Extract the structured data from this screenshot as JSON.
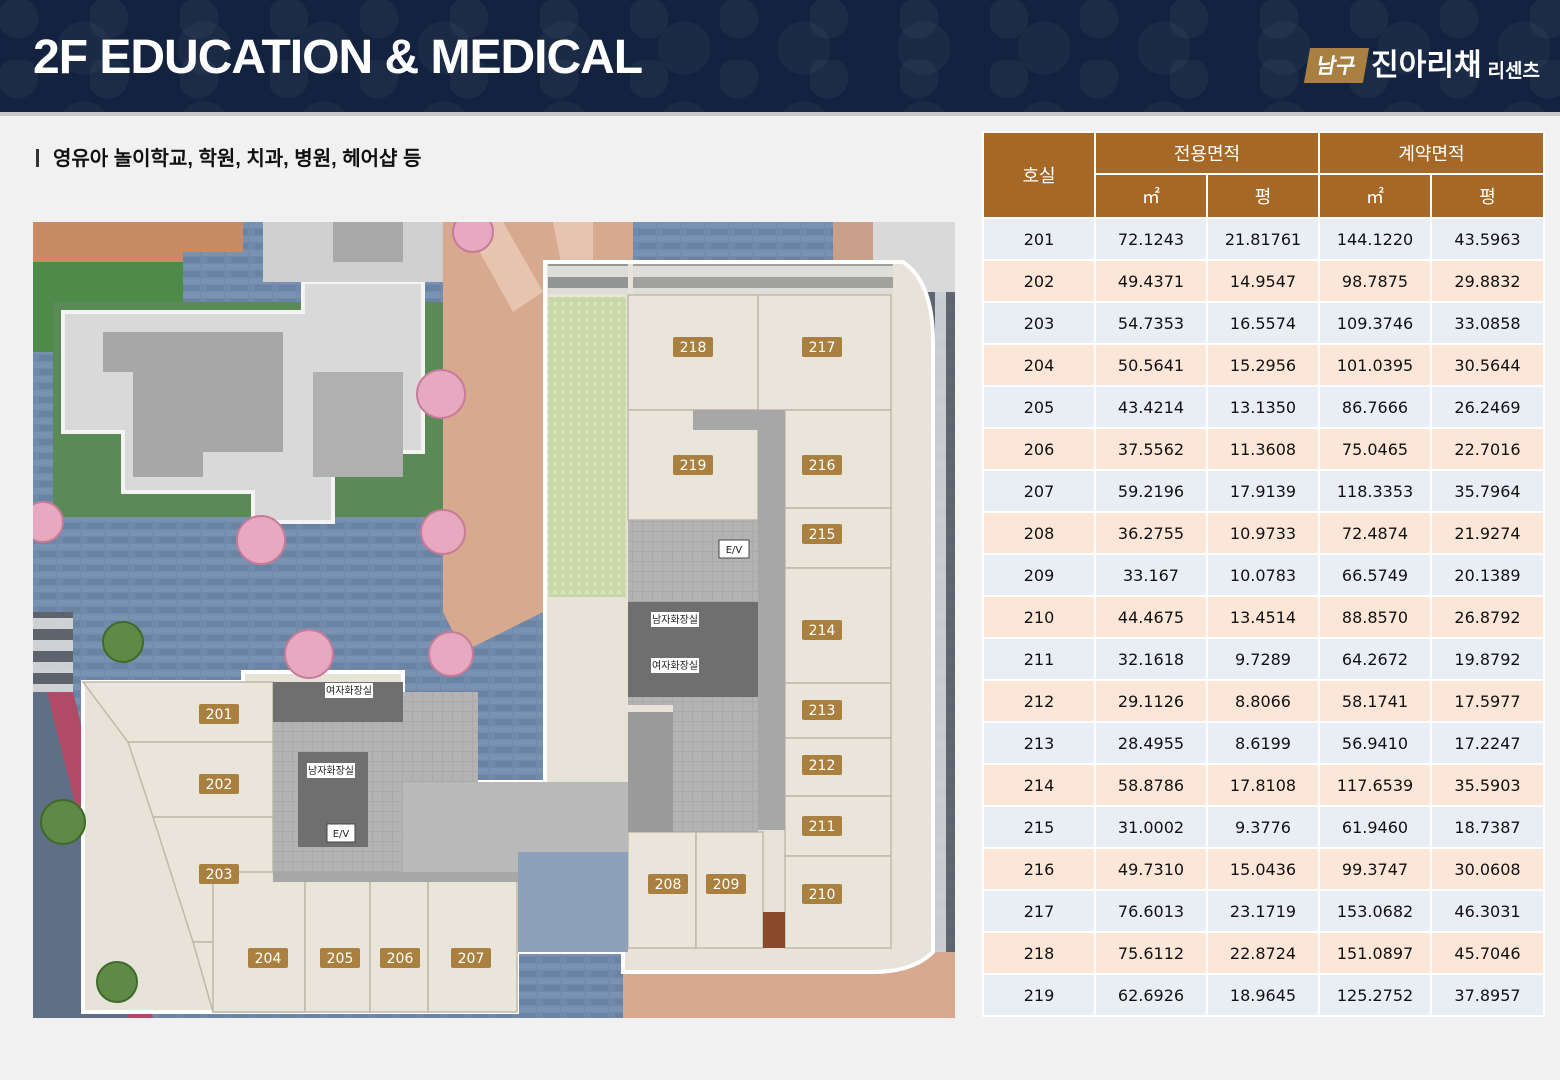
{
  "header": {
    "title": "2F EDUCATION & MEDICAL",
    "logo_badge": "남구",
    "logo_main": "진아리채",
    "logo_sub": "리센츠"
  },
  "subtitle": "영유아 놀이학교, 학원, 치과, 병원, 헤어샵 등",
  "plan": {
    "rooms": [
      "201",
      "202",
      "203",
      "204",
      "205",
      "206",
      "207",
      "208",
      "209",
      "210",
      "211",
      "212",
      "213",
      "214",
      "215",
      "216",
      "217",
      "218",
      "219"
    ],
    "facilities": {
      "ev_1": "E/V",
      "ev_2": "E/V",
      "mens_restroom_1": "남자화장실",
      "womens_restroom_1": "여자화장실",
      "womens_restroom_2": "여자화장실",
      "mens_restroom_2": "남자화장실"
    }
  },
  "table": {
    "col_room": "호실",
    "group_exclusive": "전용면적",
    "group_contract": "계약면적",
    "unit_sqm": "㎡",
    "unit_pyeong": "평",
    "rows": [
      [
        "201",
        "72.1243",
        "21.81761",
        "144.1220",
        "43.5963"
      ],
      [
        "202",
        "49.4371",
        "14.9547",
        "98.7875",
        "29.8832"
      ],
      [
        "203",
        "54.7353",
        "16.5574",
        "109.3746",
        "33.0858"
      ],
      [
        "204",
        "50.5641",
        "15.2956",
        "101.0395",
        "30.5644"
      ],
      [
        "205",
        "43.4214",
        "13.1350",
        "86.7666",
        "26.2469"
      ],
      [
        "206",
        "37.5562",
        "11.3608",
        "75.0465",
        "22.7016"
      ],
      [
        "207",
        "59.2196",
        "17.9139",
        "118.3353",
        "35.7964"
      ],
      [
        "208",
        "36.2755",
        "10.9733",
        "72.4874",
        "21.9274"
      ],
      [
        "209",
        "33.167",
        "10.0783",
        "66.5749",
        "20.1389"
      ],
      [
        "210",
        "44.4675",
        "13.4514",
        "88.8570",
        "26.8792"
      ],
      [
        "211",
        "32.1618",
        "9.7289",
        "64.2672",
        "19.8792"
      ],
      [
        "212",
        "29.1126",
        "8.8066",
        "58.1741",
        "17.5977"
      ],
      [
        "213",
        "28.4955",
        "8.6199",
        "56.9410",
        "17.2247"
      ],
      [
        "214",
        "58.8786",
        "17.8108",
        "117.6539",
        "35.5903"
      ],
      [
        "215",
        "31.0002",
        "9.3776",
        "61.9460",
        "18.7387"
      ],
      [
        "216",
        "49.7310",
        "15.0436",
        "99.3747",
        "30.0608"
      ],
      [
        "217",
        "76.6013",
        "23.1719",
        "153.0682",
        "46.3031"
      ],
      [
        "218",
        "75.6112",
        "22.8724",
        "151.0897",
        "45.7046"
      ],
      [
        "219",
        "62.6926",
        "18.9645",
        "125.2752",
        "37.8957"
      ]
    ]
  },
  "colors": {
    "header_bg": "#13233f",
    "accent_brown": "#a56827",
    "row_blue": "#e9eef5",
    "row_peach": "#fbe6d8",
    "room_tag": "#a9803f"
  }
}
